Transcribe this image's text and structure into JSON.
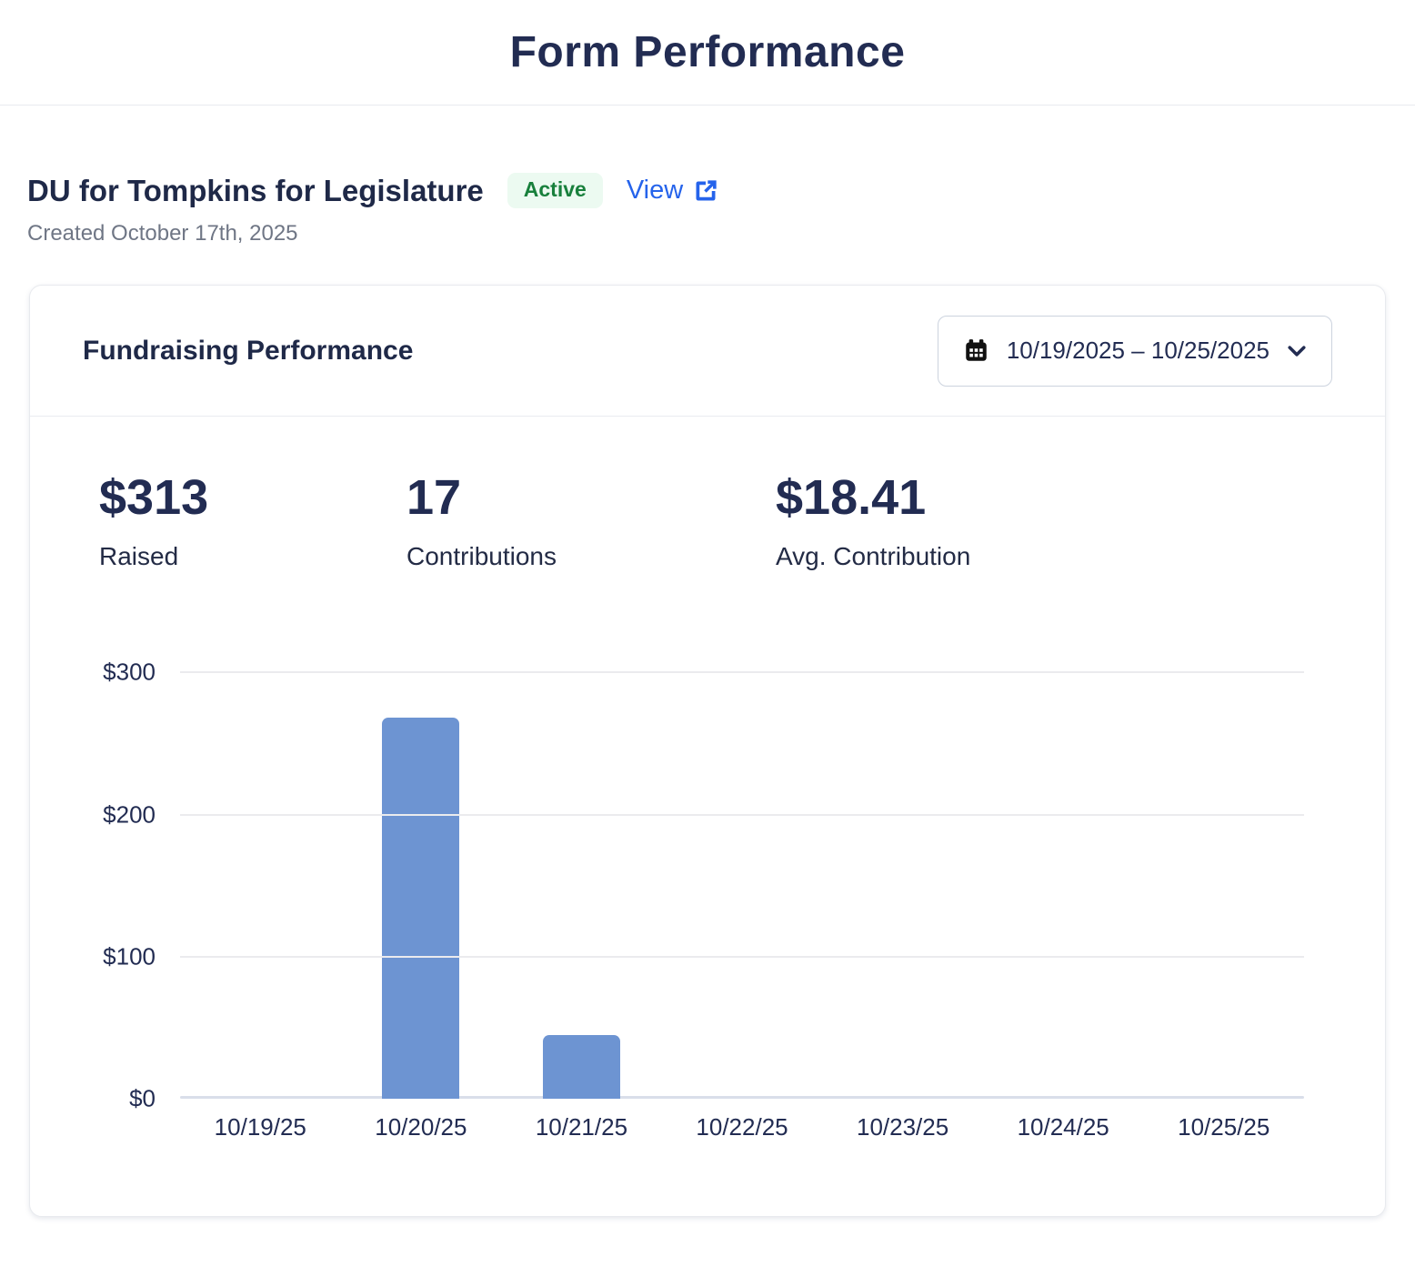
{
  "header": {
    "title": "Form Performance"
  },
  "form": {
    "name": "DU for Tompkins for Legislature",
    "status_badge": "Active",
    "view_label": "View",
    "created_text": "Created October 17th, 2025"
  },
  "panel": {
    "title": "Fundraising Performance",
    "date_range": "10/19/2025 – 10/25/2025"
  },
  "stats": {
    "raised_value": "$313",
    "raised_label": "Raised",
    "contributions_value": "17",
    "contributions_label": "Contributions",
    "avg_value": "$18.41",
    "avg_label": "Avg. Contribution"
  },
  "chart_data": {
    "type": "bar",
    "title": "Fundraising Performance",
    "categories": [
      "10/19/25",
      "10/20/25",
      "10/21/25",
      "10/22/25",
      "10/23/25",
      "10/24/25",
      "10/25/25"
    ],
    "values": [
      0,
      268,
      45,
      0,
      0,
      0,
      0
    ],
    "xlabel": "",
    "ylabel": "",
    "ylim": [
      0,
      300
    ],
    "ytick_labels": [
      "$0",
      "$100",
      "$200",
      "$300"
    ],
    "grid": true,
    "legend": false,
    "bar_color": "#6D94D2"
  },
  "icons": {
    "calendar": "calendar-icon",
    "chevron": "chevron-down-icon",
    "external": "external-link-icon"
  },
  "colors": {
    "heading_navy": "#222c52",
    "link_blue": "#2563eb",
    "badge_green_text": "#18803c",
    "badge_green_bg": "#ecfaf1",
    "bar_blue": "#6D94D2",
    "gridline": "#ebebee",
    "muted_gray": "#6f7685"
  }
}
